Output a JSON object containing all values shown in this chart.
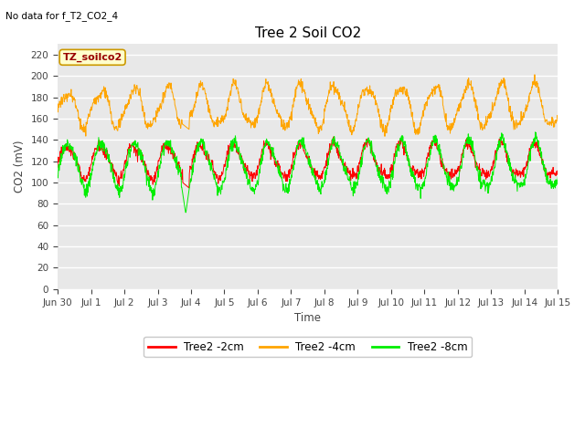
{
  "title": "Tree 2 Soil CO2",
  "top_left_text": "No data for f_T2_CO2_4",
  "ylabel": "CO2 (mV)",
  "xlabel": "Time",
  "ylim": [
    0,
    230
  ],
  "yticks": [
    0,
    20,
    40,
    60,
    80,
    100,
    120,
    140,
    160,
    180,
    200,
    220
  ],
  "background_color": "#ffffff",
  "plot_bg_color": "#e8e8e8",
  "legend_entries": [
    "Tree2 -2cm",
    "Tree2 -4cm",
    "Tree2 -8cm"
  ],
  "legend_colors": [
    "#ff0000",
    "#ffa500",
    "#00ee00"
  ],
  "annotation_box_text": "TZ_soilco2",
  "annotation_box_color": "#ffffcc",
  "annotation_box_edge": "#cc9900",
  "annotation_text_color": "#990000",
  "color_2cm": "#ff0000",
  "color_4cm": "#ffa500",
  "color_8cm": "#00ee00",
  "xtick_labels": [
    "Jun 30",
    "Jul 1",
    "Jul 2",
    "Jul 3",
    "Jul 4",
    "Jul 5",
    "Jul 6",
    "Jul 7",
    "Jul 8",
    "Jul 9",
    "Jul 10",
    "Jul 11",
    "Jul 12",
    "Jul 13",
    "Jul 14",
    "Jul 15"
  ],
  "xtick_positions": [
    0,
    1,
    2,
    3,
    4,
    5,
    6,
    7,
    8,
    9,
    10,
    11,
    12,
    13,
    14,
    15
  ]
}
